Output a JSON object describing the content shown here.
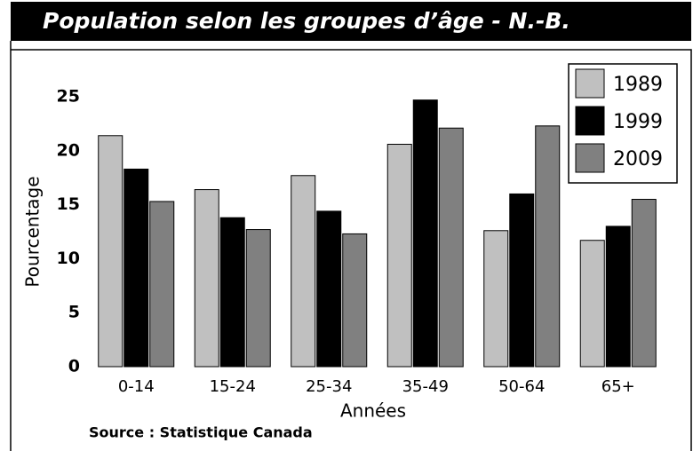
{
  "chart_data": {
    "type": "bar",
    "title": "Population selon les groupes d’âge - N.-B.",
    "x_label": "Années",
    "y_label": "Pourcentage",
    "source": "Source : Statistique Canada",
    "categories": [
      "0-14",
      "15-24",
      "25-34",
      "35-49",
      "50-64",
      "65+"
    ],
    "series": [
      {
        "name": "1989",
        "color": "#c0c0c0",
        "values": [
          21.4,
          16.4,
          17.7,
          20.6,
          12.6,
          11.7
        ]
      },
      {
        "name": "1999",
        "color": "#000000",
        "values": [
          18.3,
          13.8,
          14.4,
          24.7,
          16.0,
          13.0
        ]
      },
      {
        "name": "2009",
        "color": "#808080",
        "values": [
          15.3,
          12.7,
          12.3,
          22.1,
          22.3,
          15.5
        ]
      }
    ],
    "ylim": [
      0,
      25
    ],
    "yticks": [
      0,
      5,
      10,
      15,
      20,
      25
    ],
    "legend": "upper right"
  }
}
